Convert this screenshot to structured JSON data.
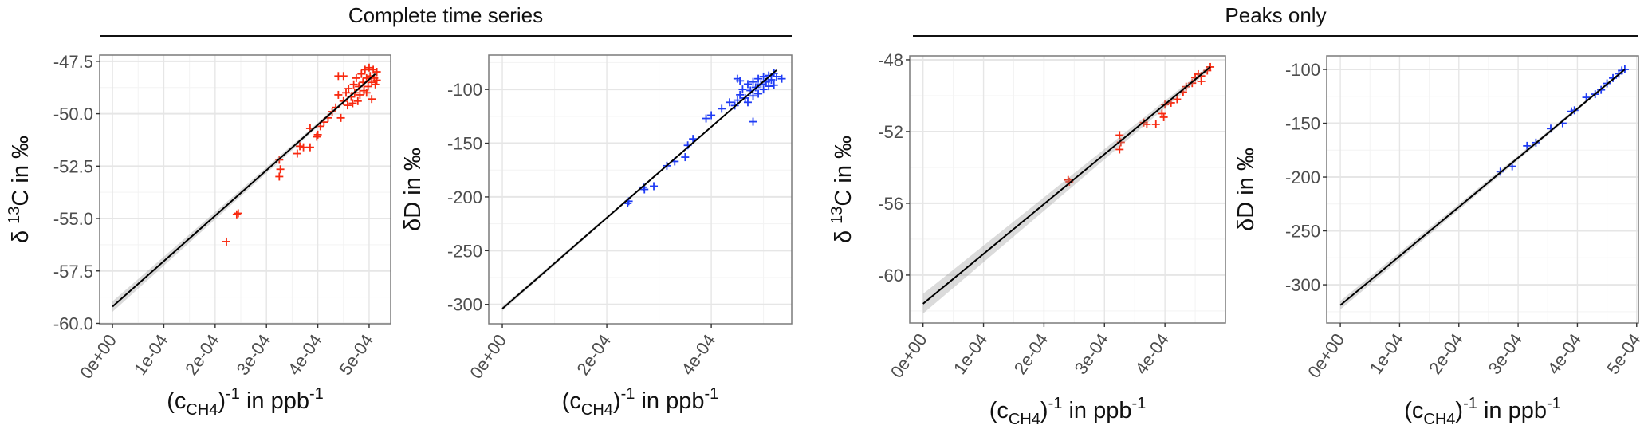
{
  "headers": {
    "complete": "Complete time series",
    "peaks": "Peaks only"
  },
  "chart_data": [
    {
      "type": "scatter",
      "group": "Complete time series",
      "color": "#f8290f",
      "xlabel": {
        "open": "(c",
        "sub": "CH4",
        "close": ")",
        "sup1": "-1",
        "mid": " in ppb",
        "sup2": "-1"
      },
      "ylabel": {
        "pre": "δ ",
        "sup": "13",
        "post": "C in ‰"
      },
      "xlim": [
        -2.5e-05,
        0.000542
      ],
      "ylim": [
        -60.02,
        -47.2
      ],
      "x_ticks": [
        0,
        0.0001,
        0.0002,
        0.0003,
        0.0004,
        0.0005
      ],
      "x_tick_labels": [
        "0e+00",
        "1e-04",
        "2e-04",
        "3e-04",
        "4e-04",
        "5e-04"
      ],
      "y_ticks": [
        -47.5,
        -50.0,
        -52.5,
        -55.0,
        -57.5,
        -60.0
      ],
      "y_tick_labels": [
        "-47.5",
        "-50.0",
        "-52.5",
        "-55.0",
        "-57.5",
        "-60.0"
      ],
      "fit": {
        "x": [
          0,
          0.000512
        ],
        "y": [
          -59.2,
          -48.1
        ],
        "ci_halfwidth_at_x0": 0.25
      },
      "points": [
        [
          0.000222,
          -56.1
        ],
        [
          0.000242,
          -54.8
        ],
        [
          0.000245,
          -54.75
        ],
        [
          0.000325,
          -52.2
        ],
        [
          0.000327,
          -52.65
        ],
        [
          0.000325,
          -53.0
        ],
        [
          0.00036,
          -51.9
        ],
        [
          0.000365,
          -51.55
        ],
        [
          0.000372,
          -51.6
        ],
        [
          0.000385,
          -51.6
        ],
        [
          0.000398,
          -51.1
        ],
        [
          0.0004,
          -51.0
        ],
        [
          0.000385,
          -50.7
        ],
        [
          0.000405,
          -50.6
        ],
        [
          0.000412,
          -50.4
        ],
        [
          0.00042,
          -50.2
        ],
        [
          0.000428,
          -49.9
        ],
        [
          0.000435,
          -49.7
        ],
        [
          0.00044,
          -48.2
        ],
        [
          0.00045,
          -48.2
        ],
        [
          0.00044,
          -49.1
        ],
        [
          0.000445,
          -50.2
        ],
        [
          0.00045,
          -49.4
        ],
        [
          0.000455,
          -49.0
        ],
        [
          0.00046,
          -48.8
        ],
        [
          0.000465,
          -49.2
        ],
        [
          0.00047,
          -48.6
        ],
        [
          0.000472,
          -49.0
        ],
        [
          0.000475,
          -48.3
        ],
        [
          0.00048,
          -48.7
        ],
        [
          0.000482,
          -49.1
        ],
        [
          0.000485,
          -48.1
        ],
        [
          0.000488,
          -48.5
        ],
        [
          0.00049,
          -48.9
        ],
        [
          0.000492,
          -47.9
        ],
        [
          0.000495,
          -48.3
        ],
        [
          0.000498,
          -48.7
        ],
        [
          0.0005,
          -47.8
        ],
        [
          0.000502,
          -48.2
        ],
        [
          0.000505,
          -48.5
        ],
        [
          0.000508,
          -47.9
        ],
        [
          0.00051,
          -48.3
        ],
        [
          0.000512,
          -48.6
        ],
        [
          0.000515,
          -48.4
        ],
        [
          0.000505,
          -49.3
        ],
        [
          0.000495,
          -49.0
        ],
        [
          0.000478,
          -49.4
        ],
        [
          0.000468,
          -49.5
        ],
        [
          0.000458,
          -49.6
        ],
        [
          0.000515,
          -48.0
        ]
      ]
    },
    {
      "type": "scatter",
      "group": "Complete time series",
      "color": "#1f3cf5",
      "xlabel": {
        "open": "(c",
        "sub": "CH4",
        "close": ")",
        "sup1": "-1",
        "mid": " in ppb",
        "sup2": "-1"
      },
      "ylabel": {
        "pre": "δD in ‰",
        "sup": "",
        "post": ""
      },
      "xlim": [
        -2.6e-05,
        0.000554
      ],
      "ylim": [
        -318,
        -68
      ],
      "x_ticks": [
        0,
        0.0002,
        0.0004
      ],
      "x_tick_labels": [
        "0e+00",
        "2e-04",
        "4e-04"
      ],
      "y_ticks": [
        -100,
        -150,
        -200,
        -250,
        -300
      ],
      "y_tick_labels": [
        "-100",
        "-150",
        "-200",
        "-250",
        "-300"
      ],
      "fit": {
        "x": [
          0,
          0.000525
        ],
        "y": [
          -304,
          -82
        ],
        "ci_halfwidth_at_x0": 2
      },
      "points": [
        [
          0.00024,
          -206
        ],
        [
          0.000242,
          -204
        ],
        [
          0.00027,
          -191
        ],
        [
          0.000272,
          -193
        ],
        [
          0.00029,
          -190
        ],
        [
          0.000315,
          -171
        ],
        [
          0.00033,
          -167
        ],
        [
          0.00035,
          -163
        ],
        [
          0.000355,
          -152
        ],
        [
          0.000365,
          -146
        ],
        [
          0.00039,
          -127
        ],
        [
          0.0004,
          -124
        ],
        [
          0.00042,
          -118
        ],
        [
          0.000435,
          -112
        ],
        [
          0.00045,
          -110
        ],
        [
          0.00048,
          -130
        ],
        [
          0.00046,
          -100
        ],
        [
          0.00047,
          -95
        ],
        [
          0.00048,
          -93
        ],
        [
          0.00049,
          -90
        ],
        [
          0.0005,
          -88
        ],
        [
          0.00051,
          -87
        ],
        [
          0.00052,
          -85
        ],
        [
          0.00045,
          -90
        ],
        [
          0.000535,
          -90
        ],
        [
          0.000455,
          -105
        ],
        [
          0.000465,
          -108
        ],
        [
          0.000475,
          -101
        ],
        [
          0.000485,
          -98
        ],
        [
          0.000495,
          -95
        ],
        [
          0.000505,
          -93
        ],
        [
          0.000515,
          -91
        ],
        [
          0.00052,
          -96
        ],
        [
          0.000525,
          -88
        ],
        [
          0.00047,
          -112
        ],
        [
          0.00048,
          -106
        ],
        [
          0.00049,
          -104
        ],
        [
          0.0005,
          -100
        ],
        [
          0.00051,
          -97
        ],
        [
          0.000455,
          -92
        ],
        [
          0.000445,
          -115
        ]
      ]
    },
    {
      "type": "scatter",
      "group": "Peaks only",
      "color": "#f8290f",
      "xlabel": {
        "open": "(c",
        "sub": "CH4",
        "close": ")",
        "sup1": "-1",
        "mid": " in ppb",
        "sup2": "-1"
      },
      "ylabel": {
        "pre": "δ ",
        "sup": "13",
        "post": "C in ‰"
      },
      "xlim": [
        -2.2e-05,
        0.0005
      ],
      "ylim": [
        -62.67,
        -47.78
      ],
      "x_ticks": [
        0,
        0.0001,
        0.0002,
        0.0003,
        0.0004
      ],
      "x_tick_labels": [
        "0e+00",
        "1e-04",
        "2e-04",
        "3e-04",
        "4e-04"
      ],
      "y_ticks": [
        -48,
        -52,
        -56,
        -60
      ],
      "y_tick_labels": [
        "-48",
        "-52",
        "-56",
        "-60"
      ],
      "fit": {
        "x": [
          0,
          0.000475
        ],
        "y": [
          -61.6,
          -48.4
        ],
        "ci_halfwidth_at_x0": 0.55
      },
      "points": [
        [
          0.00024,
          -54.7
        ],
        [
          0.000242,
          -54.8
        ],
        [
          0.000325,
          -52.2
        ],
        [
          0.000327,
          -52.6
        ],
        [
          0.000325,
          -53.0
        ],
        [
          0.000365,
          -51.5
        ],
        [
          0.00037,
          -51.6
        ],
        [
          0.000385,
          -51.6
        ],
        [
          0.000395,
          -51.0
        ],
        [
          0.000398,
          -51.2
        ],
        [
          0.0004,
          -50.5
        ],
        [
          0.00041,
          -50.4
        ],
        [
          0.00042,
          -50.2
        ],
        [
          0.00043,
          -49.8
        ],
        [
          0.000435,
          -49.5
        ],
        [
          0.000445,
          -49.3
        ],
        [
          0.00045,
          -49.0
        ],
        [
          0.000455,
          -48.8
        ],
        [
          0.00046,
          -48.9
        ],
        [
          0.00047,
          -48.6
        ],
        [
          0.000475,
          -48.4
        ],
        [
          0.00046,
          -49.2
        ]
      ]
    },
    {
      "type": "scatter",
      "group": "Peaks only",
      "color": "#1f3cf5",
      "xlabel": {
        "open": "(c",
        "sub": "CH4",
        "close": ")",
        "sup1": "-1",
        "mid": " in ppb",
        "sup2": "-1"
      },
      "ylabel": {
        "pre": "δD in ‰",
        "sup": "",
        "post": ""
      },
      "xlim": [
        -2.3e-05,
        0.000503
      ],
      "ylim": [
        -335.5,
        -87.4
      ],
      "x_ticks": [
        0,
        0.0001,
        0.0002,
        0.0003,
        0.0004,
        0.0005
      ],
      "x_tick_labels": [
        "0e+00",
        "1e-04",
        "2e-04",
        "3e-04",
        "4e-04",
        "5e-04"
      ],
      "y_ticks": [
        -100,
        -150,
        -200,
        -250,
        -300
      ],
      "y_tick_labels": [
        "-100",
        "-150",
        "-200",
        "-250",
        "-300"
      ],
      "fit": {
        "x": [
          0,
          0.00048
        ],
        "y": [
          -319,
          -100
        ],
        "ci_halfwidth_at_x0": 4
      },
      "points": [
        [
          0.00027,
          -195
        ],
        [
          0.00029,
          -190
        ],
        [
          0.000315,
          -171
        ],
        [
          0.00033,
          -168
        ],
        [
          0.000355,
          -155
        ],
        [
          0.000375,
          -150
        ],
        [
          0.00039,
          -139
        ],
        [
          0.000395,
          -138
        ],
        [
          0.000415,
          -126
        ],
        [
          0.00043,
          -123
        ],
        [
          0.00044,
          -119
        ],
        [
          0.00045,
          -113
        ],
        [
          0.00046,
          -108
        ],
        [
          0.00047,
          -104
        ],
        [
          0.000475,
          -101
        ],
        [
          0.00048,
          -100
        ]
      ]
    }
  ]
}
